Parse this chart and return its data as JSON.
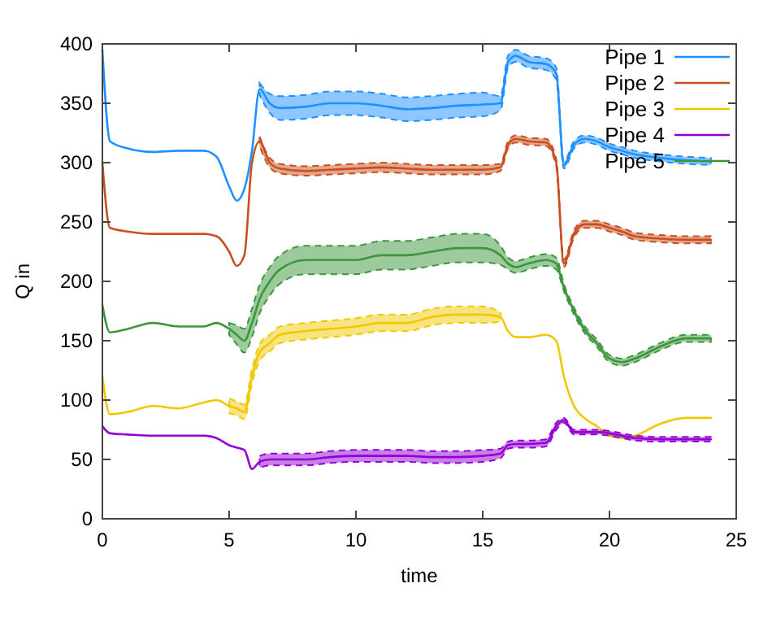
{
  "chart_data": {
    "type": "line",
    "xlabel": "time",
    "ylabel": "Q in",
    "xlim": [
      0,
      25
    ],
    "ylim": [
      0,
      400
    ],
    "xticks": [
      0,
      5,
      10,
      15,
      20,
      25
    ],
    "yticks": [
      0,
      50,
      100,
      150,
      200,
      250,
      300,
      350,
      400
    ],
    "grid": false,
    "legend": "top right",
    "line_style": "solid",
    "marker": "none",
    "x": [
      0,
      0.3,
      1,
      2,
      3,
      4,
      4.5,
      5,
      5.3,
      5.6,
      5.9,
      6.2,
      6.6,
      7,
      8,
      9,
      10,
      11,
      12,
      13,
      14,
      15,
      15.7,
      16,
      16.3,
      16.8,
      17.5,
      17.9,
      18.2,
      18.6,
      19,
      19.5,
      20,
      20.5,
      21,
      22,
      23,
      24
    ],
    "series": [
      {
        "name": "Pipe 1",
        "color": "#1e90ff",
        "values": [
          395,
          318,
          312,
          309,
          310,
          310,
          305,
          280,
          268,
          278,
          310,
          362,
          350,
          346,
          347,
          350,
          350,
          348,
          345,
          346,
          348,
          349,
          350,
          385,
          390,
          385,
          383,
          375,
          298,
          315,
          320,
          318,
          313,
          310,
          307,
          304,
          302,
          301
        ],
        "lower": [
          null,
          null,
          null,
          null,
          null,
          null,
          null,
          null,
          null,
          null,
          null,
          357,
          342,
          336,
          337,
          340,
          340,
          338,
          335,
          336,
          338,
          339,
          344,
          380,
          385,
          380,
          378,
          370,
          295,
          312,
          317,
          315,
          310,
          307,
          304,
          301,
          299,
          298
        ],
        "upper": [
          null,
          null,
          null,
          null,
          null,
          null,
          null,
          null,
          null,
          null,
          null,
          367,
          358,
          356,
          357,
          360,
          360,
          358,
          355,
          356,
          358,
          359,
          356,
          390,
          395,
          390,
          388,
          380,
          301,
          318,
          323,
          321,
          316,
          313,
          310,
          307,
          305,
          304
        ]
      },
      {
        "name": "Pipe 2",
        "color": "#c8501e",
        "values": [
          300,
          245,
          242,
          240,
          240,
          240,
          238,
          225,
          213,
          222,
          300,
          318,
          300,
          295,
          293,
          294,
          295,
          296,
          295,
          294,
          294,
          294,
          296,
          315,
          320,
          318,
          317,
          300,
          215,
          240,
          248,
          248,
          245,
          242,
          238,
          236,
          235,
          235
        ],
        "lower": [
          null,
          null,
          null,
          null,
          null,
          null,
          null,
          null,
          null,
          null,
          null,
          314,
          296,
          291,
          289,
          290,
          291,
          292,
          291,
          290,
          290,
          290,
          293,
          312,
          317,
          315,
          314,
          297,
          212,
          237,
          245,
          245,
          242,
          239,
          235,
          233,
          232,
          232
        ],
        "upper": [
          null,
          null,
          null,
          null,
          null,
          null,
          null,
          null,
          null,
          null,
          null,
          322,
          304,
          299,
          297,
          298,
          299,
          300,
          299,
          298,
          298,
          298,
          299,
          318,
          323,
          321,
          320,
          303,
          218,
          243,
          251,
          251,
          248,
          245,
          241,
          239,
          238,
          238
        ]
      },
      {
        "name": "Pipe 3",
        "color": "#f0c800",
        "values": [
          120,
          88,
          90,
          95,
          93,
          98,
          100,
          95,
          93,
          90,
          120,
          140,
          148,
          155,
          158,
          160,
          162,
          165,
          165,
          170,
          172,
          172,
          170,
          158,
          153,
          153,
          155,
          150,
          120,
          95,
          85,
          78,
          70,
          68,
          70,
          80,
          85,
          85
        ],
        "lower": [
          null,
          null,
          null,
          null,
          null,
          null,
          null,
          89,
          87,
          84,
          114,
          133,
          141,
          148,
          151,
          153,
          155,
          158,
          158,
          163,
          165,
          165,
          166,
          null,
          null,
          null,
          null,
          null,
          null,
          null,
          null,
          null,
          null,
          null,
          null,
          null,
          null,
          null
        ],
        "upper": [
          null,
          null,
          null,
          null,
          null,
          null,
          null,
          101,
          99,
          96,
          126,
          147,
          155,
          162,
          165,
          167,
          169,
          172,
          172,
          177,
          179,
          179,
          174,
          null,
          null,
          null,
          null,
          null,
          null,
          null,
          null,
          null,
          null,
          null,
          null,
          null,
          null,
          null
        ]
      },
      {
        "name": "Pipe 4",
        "color": "#9400d3",
        "values": [
          78,
          72,
          71,
          70,
          70,
          70,
          68,
          62,
          60,
          58,
          42,
          48,
          50,
          50,
          50,
          52,
          53,
          53,
          53,
          52,
          52,
          53,
          55,
          62,
          63,
          63,
          64,
          78,
          83,
          73,
          73,
          73,
          72,
          70,
          68,
          67,
          67,
          67
        ],
        "lower": [
          null,
          null,
          null,
          null,
          null,
          null,
          null,
          null,
          null,
          null,
          null,
          43,
          45,
          45,
          45,
          47,
          48,
          48,
          48,
          47,
          47,
          48,
          51,
          59,
          60,
          60,
          61,
          75,
          81,
          71,
          71,
          71,
          70,
          68,
          66,
          65,
          65,
          65
        ],
        "upper": [
          null,
          null,
          null,
          null,
          null,
          null,
          null,
          null,
          null,
          null,
          null,
          53,
          55,
          55,
          55,
          57,
          58,
          58,
          58,
          57,
          57,
          58,
          59,
          65,
          66,
          66,
          67,
          81,
          85,
          75,
          75,
          75,
          74,
          72,
          70,
          69,
          69,
          69
        ]
      },
      {
        "name": "Pipe 5",
        "color": "#3c963c",
        "values": [
          180,
          157,
          160,
          165,
          162,
          162,
          165,
          160,
          155,
          150,
          165,
          185,
          200,
          210,
          218,
          218,
          218,
          222,
          222,
          225,
          228,
          228,
          222,
          215,
          212,
          215,
          218,
          215,
          195,
          175,
          160,
          148,
          135,
          132,
          135,
          145,
          152,
          152
        ],
        "lower": [
          null,
          null,
          null,
          null,
          null,
          null,
          null,
          155,
          147,
          140,
          153,
          173,
          188,
          198,
          206,
          206,
          206,
          210,
          210,
          213,
          216,
          216,
          214,
          210,
          207,
          210,
          213,
          210,
          192,
          172,
          157,
          145,
          132,
          129,
          132,
          142,
          149,
          149
        ],
        "upper": [
          null,
          null,
          null,
          null,
          null,
          null,
          null,
          165,
          163,
          160,
          177,
          197,
          212,
          222,
          230,
          230,
          230,
          234,
          234,
          237,
          240,
          240,
          230,
          220,
          217,
          220,
          223,
          220,
          198,
          178,
          163,
          151,
          138,
          135,
          138,
          148,
          155,
          155
        ]
      }
    ]
  }
}
